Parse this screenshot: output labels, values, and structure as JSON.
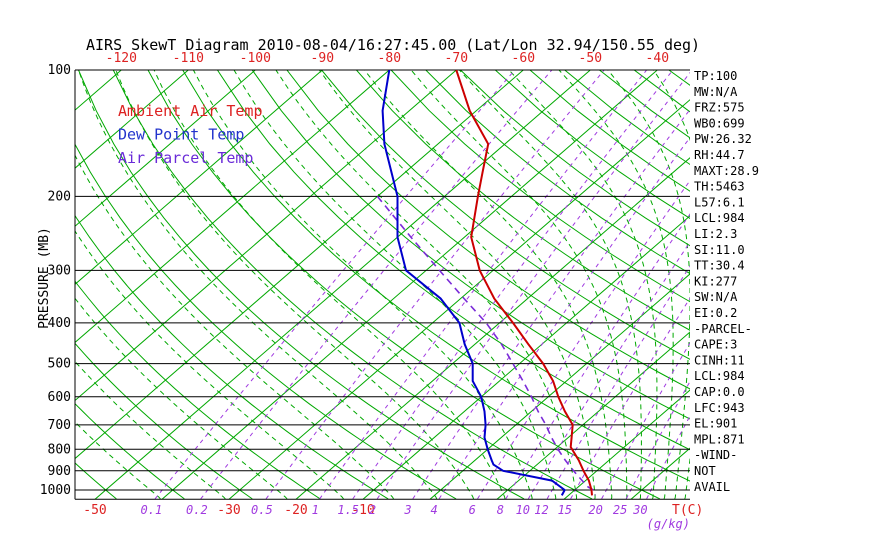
{
  "title": "AIRS SkewT Diagram 2010-08-04/16:27:45.00 (Lat/Lon 32.94/150.55 deg)",
  "axes": {
    "pressure_label": "PRESSURE (MB)",
    "pressure_ticks": [
      100,
      200,
      300,
      400,
      500,
      600,
      700,
      800,
      900,
      1000
    ],
    "top_temp_ticks": [
      -120,
      -110,
      -100,
      -90,
      -80,
      -70,
      -60,
      -50,
      -40
    ],
    "bottom_temp_ticks": [
      -50,
      -30,
      -20,
      -10
    ],
    "temp_unit_label": "T(C)",
    "mixing_ratio_ticks": [
      0.1,
      0.2,
      0.5,
      1,
      1.5,
      2,
      3,
      4,
      6,
      8,
      10,
      12,
      15,
      20,
      25,
      30
    ],
    "mixing_ratio_unit_label": "(g/kg)"
  },
  "legend": {
    "items": [
      {
        "id": "ambient",
        "label": "Ambient Air Temp",
        "color": "#dd2222"
      },
      {
        "id": "dewpoint",
        "label": "Dew Point Temp",
        "color": "#2233cc"
      },
      {
        "id": "parcel",
        "label": "Air Parcel Temp",
        "color": "#6a2bd8"
      }
    ]
  },
  "stats_panel": {
    "lines": [
      "TP:100",
      "MW:N/A",
      "FRZ:575",
      "WB0:699",
      "PW:26.32",
      "RH:44.7",
      "MAXT:28.9",
      "TH:5463",
      "L57:6.1",
      "LCL:984",
      "LI:2.3",
      "SI:11.0",
      "TT:30.4",
      "KI:277",
      "SW:N/A",
      "EI:0.2",
      "-PARCEL-",
      "CAPE:3",
      "CINH:11",
      "LCL:984",
      "CAP:0.0",
      "LFC:943",
      "EL:901",
      "MPL:871",
      "-WIND-",
      "NOT",
      "AVAIL"
    ]
  },
  "colors": {
    "background": "#ffffff",
    "isotherm_green": "#00a800",
    "mixing_ratio_purple": "#a03ae0",
    "pressure_line_black": "#000000",
    "tick_label_red": "#dd2222"
  },
  "chart_data": {
    "type": "line",
    "subtype": "skewt-logp",
    "title": "AIRS SkewT Diagram 2010-08-04/16:27:45.00 (Lat/Lon 32.94/150.55 deg)",
    "y_axis": {
      "label": "PRESSURE (MB)",
      "scale": "log",
      "range": [
        100,
        1050
      ]
    },
    "x_axis": {
      "label": "T(C)",
      "skew_deg": 45,
      "top_ticks_at_100mb": [
        -120,
        -110,
        -100,
        -90,
        -80,
        -70,
        -60,
        -50,
        -40
      ],
      "bottom_ticks": [
        -50,
        -30,
        -20,
        -10
      ]
    },
    "grid": {
      "isotherms_c": {
        "min": -160,
        "max": 40,
        "step": 10
      },
      "dry_adiabats_c": {
        "min": -60,
        "max": 180,
        "step": 10
      },
      "moist_adiabats_theta_e_k": {
        "min": 230,
        "max": 420,
        "step": 10
      },
      "mixing_ratio_lines_g_kg": [
        0.1,
        0.2,
        0.5,
        1,
        1.5,
        2,
        3,
        4,
        6,
        8,
        10,
        12,
        15,
        20,
        25,
        30
      ]
    },
    "series": [
      {
        "id": "air-parcel-temp",
        "name": "Air Parcel Temp",
        "color": "#7a2bd8",
        "dash": "7 5",
        "width": 1.6,
        "points_pressure_mb_temp_c": "below",
        "points": [
          [
            200,
            -60
          ],
          [
            250,
            -48
          ],
          [
            300,
            -38
          ],
          [
            350,
            -29.5
          ],
          [
            400,
            -22
          ],
          [
            450,
            -16
          ],
          [
            500,
            -11
          ],
          [
            550,
            -6.5
          ],
          [
            600,
            -2.5
          ],
          [
            650,
            1
          ],
          [
            700,
            4.5
          ],
          [
            750,
            7.5
          ],
          [
            800,
            10.5
          ],
          [
            850,
            13.5
          ],
          [
            900,
            16.5
          ],
          [
            950,
            19.5
          ],
          [
            984,
            21.5
          ],
          [
            1000,
            22.8
          ],
          [
            1030,
            24
          ]
        ]
      },
      {
        "id": "dew-point-temp",
        "name": "Dew Point Temp",
        "color": "#0000cc",
        "dash": "",
        "width": 2,
        "points": [
          [
            100,
            -80
          ],
          [
            125,
            -74
          ],
          [
            150,
            -68
          ],
          [
            200,
            -57
          ],
          [
            250,
            -50
          ],
          [
            300,
            -43
          ],
          [
            350,
            -33
          ],
          [
            400,
            -26
          ],
          [
            450,
            -21.5
          ],
          [
            500,
            -17
          ],
          [
            550,
            -14
          ],
          [
            600,
            -10
          ],
          [
            650,
            -7
          ],
          [
            700,
            -4.5
          ],
          [
            750,
            -2.5
          ],
          [
            800,
            0
          ],
          [
            850,
            2.5
          ],
          [
            870,
            3.5
          ],
          [
            900,
            6
          ],
          [
            950,
            15
          ],
          [
            1000,
            18.5
          ],
          [
            1030,
            19
          ]
        ]
      },
      {
        "id": "ambient-air-temp",
        "name": "Ambient Air Temp",
        "color": "#cc0000",
        "dash": "",
        "width": 2,
        "points": [
          [
            100,
            -70
          ],
          [
            125,
            -61
          ],
          [
            150,
            -52.5
          ],
          [
            175,
            -48.5
          ],
          [
            200,
            -45
          ],
          [
            250,
            -39
          ],
          [
            300,
            -32
          ],
          [
            350,
            -25
          ],
          [
            400,
            -18
          ],
          [
            450,
            -12
          ],
          [
            500,
            -6.5
          ],
          [
            550,
            -2
          ],
          [
            600,
            1.5
          ],
          [
            650,
            5
          ],
          [
            700,
            8.5
          ],
          [
            750,
            10.5
          ],
          [
            790,
            12
          ],
          [
            850,
            15.5
          ],
          [
            900,
            18
          ],
          [
            950,
            20.5
          ],
          [
            1000,
            22.5
          ],
          [
            1030,
            23.5
          ]
        ]
      }
    ]
  }
}
